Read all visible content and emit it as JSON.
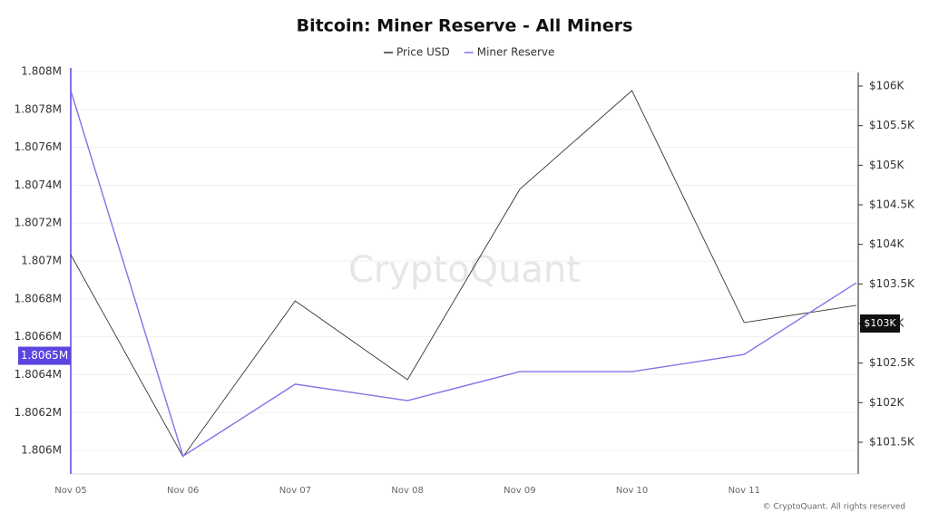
{
  "chart_data": {
    "type": "line",
    "title": "Bitcoin: Miner Reserve - All Miners",
    "categories": [
      "Nov 05",
      "Nov 06",
      "Nov 07",
      "Nov 08",
      "Nov 09",
      "Nov 10",
      "Nov 11",
      null
    ],
    "series": [
      {
        "name": "Price USD",
        "color": "#333333",
        "axis": "y2",
        "values": [
          103870,
          101317,
          103286,
          102290,
          104695,
          105943,
          103012,
          103229
        ]
      },
      {
        "name": "Miner Reserve",
        "color": "#7f74e8",
        "values": [
          1807900,
          1805970,
          1806350,
          1806263,
          1806416,
          1806416,
          1806507,
          1806885
        ]
      }
    ],
    "ylim": [
      1805876,
      1808019
    ],
    "yticks": [
      {
        "value": 1806000,
        "label": "1.806M"
      },
      {
        "value": 1806200,
        "label": "1.8062M"
      },
      {
        "value": 1806400,
        "label": "1.8064M"
      },
      {
        "value": 1806600,
        "label": "1.8066M"
      },
      {
        "value": 1806800,
        "label": "1.8068M"
      },
      {
        "value": 1807000,
        "label": "1.807M"
      },
      {
        "value": 1807200,
        "label": "1.8072M"
      },
      {
        "value": 1807400,
        "label": "1.8074M"
      },
      {
        "value": 1807600,
        "label": "1.8076M"
      },
      {
        "value": 1807800,
        "label": "1.8078M"
      },
      {
        "value": 1808000,
        "label": "1.808M"
      }
    ],
    "y2lim": [
      101099,
      106229
    ],
    "y2ticks": [
      {
        "value": 101500,
        "label": "$101.5K"
      },
      {
        "value": 102000,
        "label": "$102K"
      },
      {
        "value": 102500,
        "label": "$102.5K"
      },
      {
        "value": 103000,
        "label": "$103K"
      },
      {
        "value": 103500,
        "label": "$103.5K"
      },
      {
        "value": 104000,
        "label": "$104K"
      },
      {
        "value": 104500,
        "label": "$104.5K"
      },
      {
        "value": 105000,
        "label": "$105K"
      },
      {
        "value": 105500,
        "label": "$105.5K"
      },
      {
        "value": 106000,
        "label": "$106K"
      }
    ],
    "y_marker": {
      "value": 1806500,
      "label": "1.8065M"
    },
    "y2_marker": {
      "value": 103000,
      "label": "$103K"
    },
    "grid": true,
    "legend": "top",
    "watermark": "CryptoQuant",
    "credit": "© CryptoQuant. All rights reserved"
  }
}
